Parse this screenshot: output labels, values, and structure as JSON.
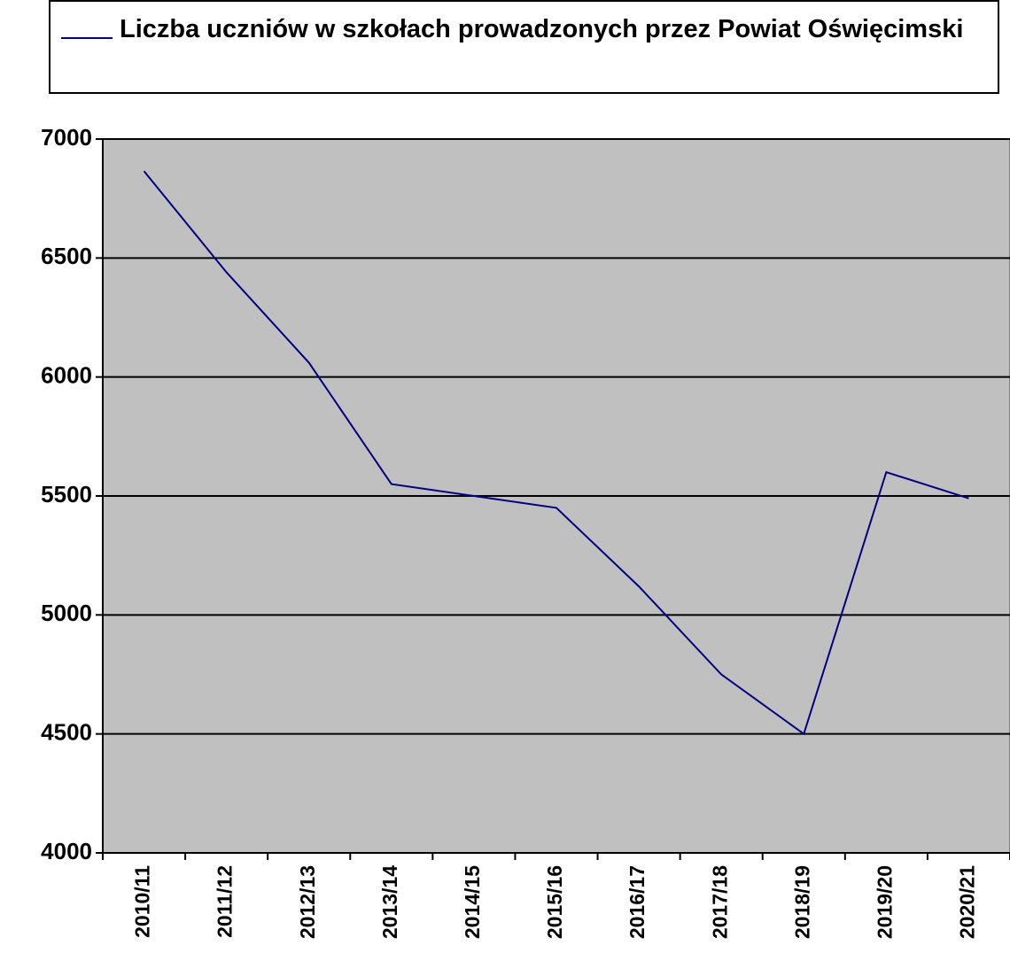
{
  "chart_data": {
    "type": "line",
    "categories": [
      "2010/11",
      "2011/12",
      "2012/13",
      "2013/14",
      "2014/15",
      "2015/16",
      "2016/17",
      "2017/18",
      "2018/19",
      "2019/20",
      "2020/21"
    ],
    "series": [
      {
        "name": "Liczba uczniów w szkołach prowadzonych przez Powiat Oświęcimski",
        "color": "#000080",
        "values": [
          6865,
          6440,
          6060,
          5550,
          5500,
          5450,
          5120,
          4750,
          4500,
          5600,
          5490
        ]
      }
    ],
    "ylim": [
      4000,
      7000
    ],
    "yticks": [
      4000,
      4500,
      5000,
      5500,
      6000,
      6500,
      7000
    ],
    "grid": true,
    "legend": "top"
  }
}
